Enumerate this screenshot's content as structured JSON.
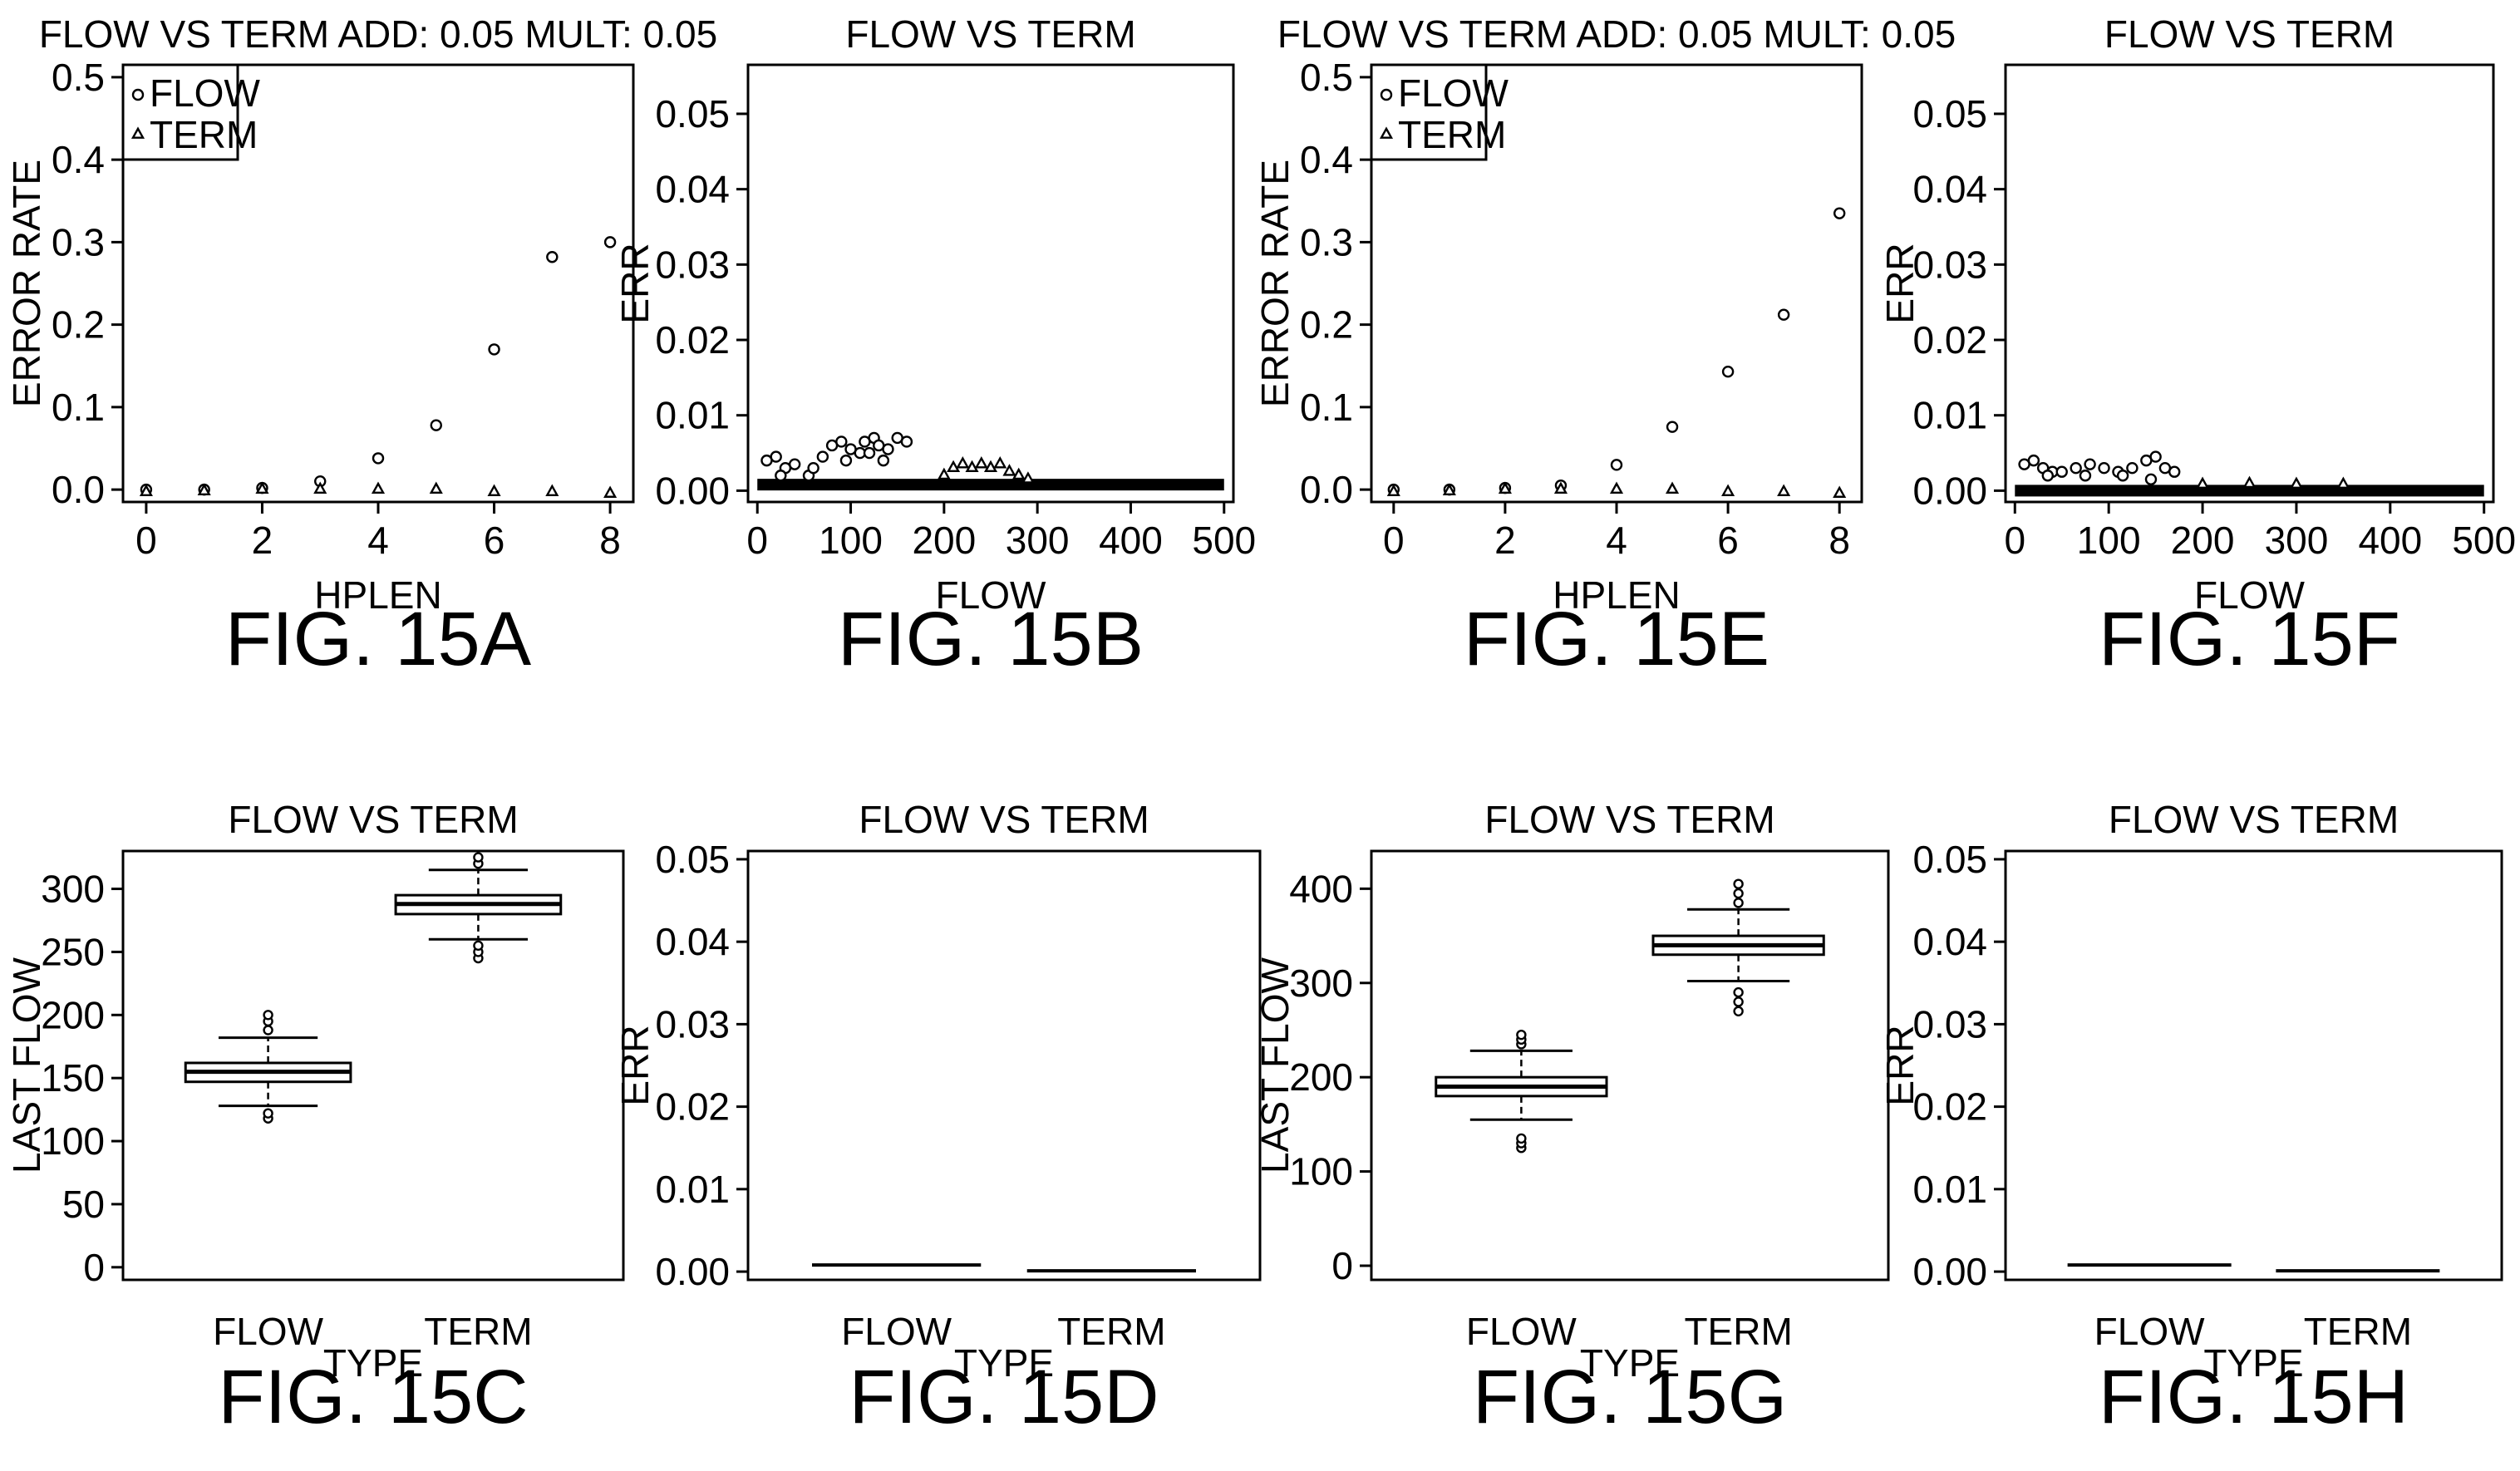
{
  "figures": [
    {
      "fig_label": "FIG. 15A",
      "chart_data": {
        "type": "scatter",
        "title": "FLOW VS TERM ADD: 0.05 MULT: 0.05",
        "xlabel": "HPLEN",
        "ylabel": "ERROR RATE",
        "xlim": [
          -0.4,
          8.4
        ],
        "ylim": [
          -0.015,
          0.515
        ],
        "xticks": [
          "0",
          "2",
          "4",
          "6",
          "8"
        ],
        "yticks": [
          "0.0",
          "0.1",
          "0.2",
          "0.3",
          "0.4",
          "0.5"
        ],
        "legend": {
          "position": "top-left",
          "entries": [
            "FLOW",
            "TERM"
          ]
        },
        "series": [
          {
            "name": "FLOW",
            "marker": "circle",
            "x": [
              0,
              1,
              2,
              3,
              4,
              5,
              6,
              7,
              8
            ],
            "y": [
              0.0,
              0.0,
              0.002,
              0.01,
              0.038,
              0.078,
              0.17,
              0.282,
              0.3
            ]
          },
          {
            "name": "TERM",
            "marker": "triangle",
            "x": [
              0,
              1,
              2,
              3,
              4,
              5,
              6,
              7,
              8
            ],
            "y": [
              -0.003,
              -0.002,
              0.0,
              0.0,
              0.0,
              0.0,
              -0.003,
              -0.003,
              -0.005
            ]
          }
        ]
      }
    },
    {
      "fig_label": "FIG. 15B",
      "chart_data": {
        "type": "scatter",
        "title": "FLOW VS TERM",
        "xlabel": "FLOW",
        "ylabel": "ERR",
        "xlim": [
          -10,
          510
        ],
        "ylim": [
          -0.0015,
          0.0565
        ],
        "xticks": [
          "0",
          "100",
          "200",
          "300",
          "400",
          "500"
        ],
        "yticks": [
          "0.00",
          "0.01",
          "0.02",
          "0.03",
          "0.04",
          "0.05"
        ],
        "series": [
          {
            "marker": "circle",
            "x": [
              10,
              20,
              30,
              40,
              55,
              70,
              80,
              90,
              100,
              110,
              115,
              125,
              130,
              140,
              150,
              160,
              25,
              60,
              95,
              120,
              135
            ],
            "y": [
              0.004,
              0.0045,
              0.003,
              0.0035,
              0.002,
              0.0045,
              0.006,
              0.0065,
              0.0055,
              0.005,
              0.0065,
              0.007,
              0.006,
              0.0055,
              0.007,
              0.0065,
              0.002,
              0.003,
              0.004,
              0.005,
              0.004
            ]
          },
          {
            "marker": "triangle",
            "x": [
              200,
              210,
              220,
              230,
              240,
              250,
              260,
              270,
              280,
              290
            ],
            "y": [
              0.002,
              0.003,
              0.0035,
              0.003,
              0.0035,
              0.003,
              0.0035,
              0.0025,
              0.002,
              0.0015
            ]
          }
        ],
        "baseline": {
          "x_range": [
            0,
            500
          ],
          "y": 0.0008
        }
      }
    },
    {
      "fig_label": "FIG. 15E",
      "chart_data": {
        "type": "scatter",
        "title": "FLOW VS TERM ADD: 0.05 MULT: 0.05",
        "xlabel": "HPLEN",
        "ylabel": "ERROR RATE",
        "xlim": [
          -0.4,
          8.4
        ],
        "ylim": [
          -0.015,
          0.515
        ],
        "xticks": [
          "0",
          "2",
          "4",
          "6",
          "8"
        ],
        "yticks": [
          "0.0",
          "0.1",
          "0.2",
          "0.3",
          "0.4",
          "0.5"
        ],
        "legend": {
          "position": "top-left",
          "entries": [
            "FLOW",
            "TERM"
          ]
        },
        "series": [
          {
            "name": "FLOW",
            "marker": "circle",
            "x": [
              0,
              1,
              2,
              3,
              4,
              5,
              6,
              7,
              8
            ],
            "y": [
              0.0,
              0.0,
              0.002,
              0.005,
              0.03,
              0.076,
              0.143,
              0.212,
              0.335
            ]
          },
          {
            "name": "TERM",
            "marker": "triangle",
            "x": [
              0,
              1,
              2,
              3,
              4,
              5,
              6,
              7,
              8
            ],
            "y": [
              -0.003,
              -0.002,
              0.0,
              0.0,
              0.0,
              0.0,
              -0.003,
              -0.003,
              -0.005
            ]
          }
        ]
      }
    },
    {
      "fig_label": "FIG. 15F",
      "chart_data": {
        "type": "scatter",
        "title": "FLOW VS TERM",
        "xlabel": "FLOW",
        "ylabel": "ERR",
        "xlim": [
          -10,
          510
        ],
        "ylim": [
          -0.0015,
          0.0565
        ],
        "xticks": [
          "0",
          "100",
          "200",
          "300",
          "400",
          "500"
        ],
        "yticks": [
          "0.00",
          "0.01",
          "0.02",
          "0.03",
          "0.04",
          "0.05"
        ],
        "series": [
          {
            "marker": "circle",
            "x": [
              10,
              20,
              30,
              40,
              50,
              65,
              80,
              95,
              110,
              125,
              140,
              150,
              160,
              170,
              35,
              75,
              115,
              145
            ],
            "y": [
              0.0035,
              0.004,
              0.003,
              0.0025,
              0.0025,
              0.003,
              0.0035,
              0.003,
              0.0025,
              0.003,
              0.004,
              0.0045,
              0.003,
              0.0025,
              0.002,
              0.002,
              0.002,
              0.0015
            ]
          },
          {
            "marker": "triangle",
            "x": [
              200,
              250,
              300,
              350
            ],
            "y": [
              0.0008,
              0.0009,
              0.0008,
              0.0008
            ]
          }
        ],
        "baseline": {
          "x_range": [
            0,
            500
          ],
          "y": 0.0
        }
      }
    },
    {
      "fig_label": "FIG. 15C",
      "chart_data": {
        "type": "box",
        "title": "FLOW VS TERM",
        "xlabel": "TYPE",
        "ylabel": "LAST FLOW",
        "ylim": [
          -10,
          330
        ],
        "yticks": [
          "0",
          "50",
          "100",
          "150",
          "200",
          "250",
          "300"
        ],
        "categories": [
          "FLOW",
          "TERM"
        ],
        "boxes": [
          {
            "whisker_low": 128,
            "q1": 147,
            "median": 155,
            "q3": 162,
            "whisker_high": 182,
            "outliers": [
              118,
              122,
              188,
              195,
              200
            ]
          },
          {
            "whisker_low": 260,
            "q1": 280,
            "median": 288,
            "q3": 295,
            "whisker_high": 315,
            "outliers": [
              245,
              250,
              255,
              320,
              325
            ]
          }
        ]
      }
    },
    {
      "fig_label": "FIG. 15D",
      "chart_data": {
        "type": "box",
        "title": "FLOW VS TERM",
        "xlabel": "TYPE",
        "ylabel": "ERR",
        "ylim": [
          -0.001,
          0.051
        ],
        "yticks": [
          "0.00",
          "0.01",
          "0.02",
          "0.03",
          "0.04",
          "0.05"
        ],
        "categories": [
          "FLOW",
          "TERM"
        ],
        "medians": [
          0.0008,
          0.0001
        ]
      }
    },
    {
      "fig_label": "FIG. 15G",
      "chart_data": {
        "type": "box",
        "title": "FLOW VS TERM",
        "xlabel": "TYPE",
        "ylabel": "LAST FLOW",
        "ylim": [
          -15,
          440
        ],
        "yticks": [
          "0",
          "100",
          "200",
          "300",
          "400"
        ],
        "categories": [
          "FLOW",
          "TERM"
        ],
        "boxes": [
          {
            "whisker_low": 155,
            "q1": 180,
            "median": 190,
            "q3": 200,
            "whisker_high": 228,
            "outliers": [
              125,
              130,
              135,
              235,
              240,
              245
            ]
          },
          {
            "whisker_low": 302,
            "q1": 330,
            "median": 340,
            "q3": 350,
            "whisker_high": 378,
            "outliers": [
              270,
              280,
              290,
              385,
              395,
              405
            ]
          }
        ]
      }
    },
    {
      "fig_label": "FIG. 15H",
      "chart_data": {
        "type": "box",
        "title": "FLOW VS TERM",
        "xlabel": "TYPE",
        "ylabel": "ERR",
        "ylim": [
          -0.001,
          0.051
        ],
        "yticks": [
          "0.00",
          "0.01",
          "0.02",
          "0.03",
          "0.04",
          "0.05"
        ],
        "categories": [
          "FLOW",
          "TERM"
        ],
        "medians": [
          0.0008,
          0.0001
        ]
      }
    }
  ]
}
